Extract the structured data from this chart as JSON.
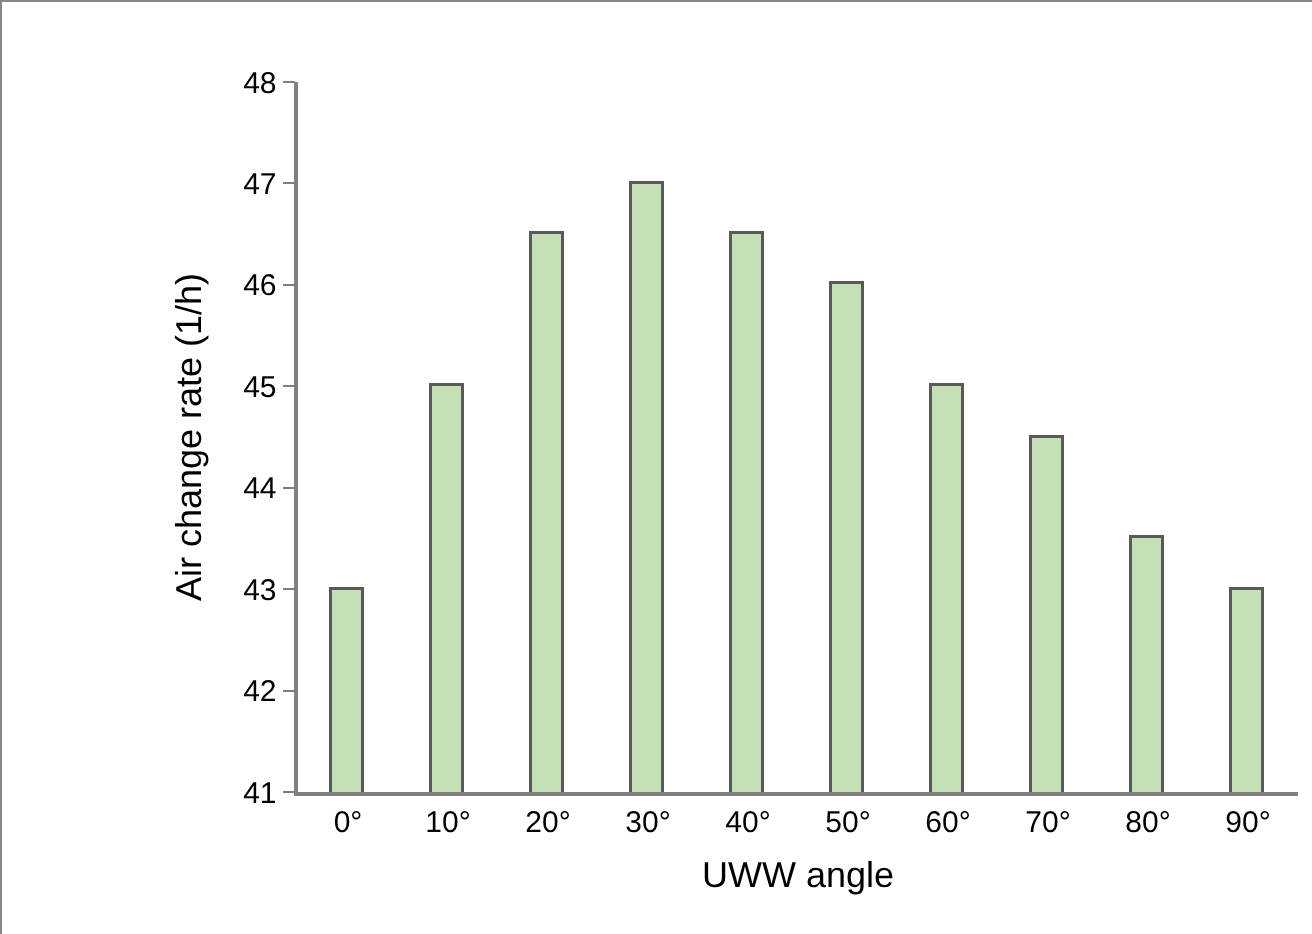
{
  "chart_data": {
    "type": "bar",
    "xlabel": "UWW angle",
    "ylabel": "Air change rate (1/h)",
    "categories": [
      "0°",
      "10°",
      "20°",
      "30°",
      "40°",
      "50°",
      "60°",
      "70°",
      "80°",
      "90°"
    ],
    "values": [
      43,
      45,
      46.5,
      47,
      46.5,
      46,
      45,
      44.5,
      43.5,
      43
    ],
    "color": "#c5e0b4",
    "ylim": [
      41,
      48
    ],
    "yticks": [
      41,
      42,
      43,
      44,
      45,
      46,
      47,
      48
    ],
    "grid": false,
    "legend": false
  }
}
